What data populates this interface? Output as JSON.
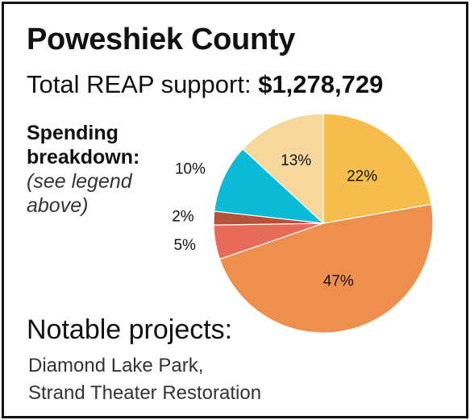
{
  "title": "Poweshiek County",
  "total_label": "Total REAP support:",
  "total_amount": "$1,278,729",
  "breakdown": {
    "label_line1": "Spending",
    "label_line2": "breakdown:",
    "note_line1": "(see legend",
    "note_line2": "above)"
  },
  "notable": {
    "heading": "Notable projects:",
    "line1": "Diamond Lake Park,",
    "line2": "Strand Theater Restoration"
  },
  "chart_data": {
    "type": "pie",
    "start": "12 o'clock, clockwise",
    "slices": [
      {
        "value": 22,
        "label": "22%",
        "color": "#F5BE4C"
      },
      {
        "value": 47,
        "label": "47%",
        "color": "#EE8F4E"
      },
      {
        "value": 5,
        "label": "5%",
        "color": "#E86A58"
      },
      {
        "value": 2,
        "label": "2%",
        "color": "#B5533A"
      },
      {
        "value": 10,
        "label": "10%",
        "color": "#0BBAD6"
      },
      {
        "value": 13,
        "label": "13%",
        "color": "#F6D79C"
      }
    ]
  }
}
